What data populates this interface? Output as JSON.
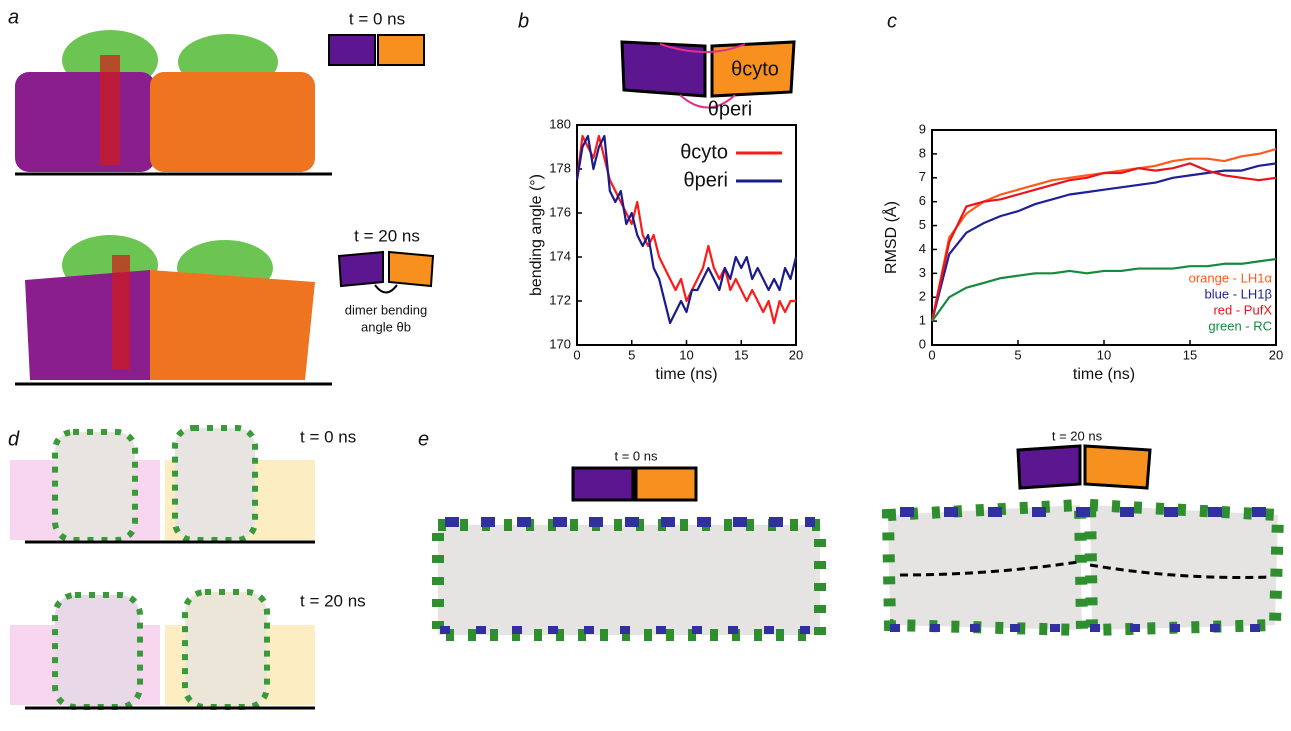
{
  "panels": {
    "a": {
      "label": "a",
      "t0": "t = 0 ns",
      "t20": "t = 20 ns",
      "note": [
        "dimer bending",
        "angle θb"
      ]
    },
    "b": {
      "label": "b",
      "schematic": [
        "θcyto",
        "θperi"
      ]
    },
    "c": {
      "label": "c"
    },
    "d": {
      "label": "d",
      "t0": "t = 0 ns",
      "t20": "t = 20 ns"
    },
    "e": {
      "label": "e",
      "t0": "t = 0 ns",
      "t20": "t = 20 ns"
    }
  },
  "chart_data": [
    {
      "type": "line",
      "xlabel": "time (ns)",
      "ylabel": "bending angle (°)",
      "xlim": [
        0,
        20
      ],
      "xticks": [
        0,
        5,
        10,
        15,
        20
      ],
      "ylim": [
        170,
        180
      ],
      "yticks": [
        170,
        172,
        174,
        176,
        178,
        180
      ],
      "legend": "upper right",
      "x": [
        0,
        0.5,
        1,
        1.5,
        2,
        2.5,
        3,
        3.5,
        4,
        4.5,
        5,
        5.5,
        6,
        6.5,
        7,
        7.5,
        8,
        8.5,
        9,
        9.5,
        10,
        10.5,
        11,
        11.5,
        12,
        12.5,
        13,
        13.5,
        14,
        14.5,
        15,
        15.5,
        16,
        16.5,
        17,
        17.5,
        18,
        18.5,
        19,
        19.5,
        20
      ],
      "series": [
        {
          "name": "θcyto",
          "color": "#ff1a1a",
          "values": [
            177.5,
            179.5,
            179,
            178.5,
            179.5,
            178.5,
            177.5,
            177,
            176.5,
            176,
            175.5,
            176.5,
            175,
            174.5,
            175,
            174,
            173.5,
            173,
            172.5,
            173,
            172,
            172.5,
            173,
            173.5,
            174.5,
            173.5,
            173,
            173.5,
            172.5,
            173,
            172.5,
            172,
            172.5,
            172,
            171.5,
            172,
            171,
            172,
            171.5,
            172,
            172
          ]
        },
        {
          "name": "θperi",
          "color": "#1a1a8c",
          "values": [
            177.5,
            179,
            179.5,
            178,
            179,
            179.5,
            177,
            176.5,
            177,
            175.5,
            176,
            175,
            174.5,
            175,
            173.5,
            173,
            172,
            171,
            171.5,
            172,
            171.5,
            172.5,
            172.5,
            173,
            173.5,
            173,
            172.5,
            173.5,
            173,
            174,
            173.5,
            174,
            173,
            173.5,
            173,
            172.5,
            173,
            172.5,
            173.5,
            173,
            174
          ]
        }
      ]
    },
    {
      "type": "line",
      "xlabel": "time (ns)",
      "ylabel": "RMSD (Å)",
      "xlim": [
        0,
        20
      ],
      "xticks": [
        0,
        5,
        10,
        15,
        20
      ],
      "ylim": [
        0,
        9
      ],
      "yticks": [
        0,
        1,
        2,
        3,
        4,
        5,
        6,
        7,
        8,
        9
      ],
      "legend": "lower right",
      "x": [
        0,
        1,
        2,
        3,
        4,
        5,
        6,
        7,
        8,
        9,
        10,
        11,
        12,
        13,
        14,
        15,
        16,
        17,
        18,
        19,
        20
      ],
      "series": [
        {
          "name": "orange - LH1α",
          "color": "#ff5a1a",
          "values": [
            1,
            4.5,
            5.5,
            6,
            6.3,
            6.5,
            6.7,
            6.9,
            7,
            7.1,
            7.2,
            7.3,
            7.4,
            7.5,
            7.7,
            7.8,
            7.8,
            7.7,
            7.9,
            8,
            8.2
          ]
        },
        {
          "name": "blue - LH1β",
          "color": "#1f1f99",
          "values": [
            1,
            3.8,
            4.7,
            5.1,
            5.4,
            5.6,
            5.9,
            6.1,
            6.3,
            6.4,
            6.5,
            6.6,
            6.7,
            6.8,
            7,
            7.1,
            7.2,
            7.3,
            7.3,
            7.5,
            7.6
          ]
        },
        {
          "name": "red - PufX",
          "color": "#e8141c",
          "values": [
            1,
            4.3,
            5.8,
            6,
            6.1,
            6.3,
            6.5,
            6.7,
            6.9,
            7,
            7.2,
            7.2,
            7.4,
            7.3,
            7.4,
            7.6,
            7.3,
            7.1,
            7,
            6.9,
            7
          ]
        },
        {
          "name": "green - RC",
          "color": "#138a3c",
          "values": [
            1,
            2,
            2.4,
            2.6,
            2.8,
            2.9,
            3,
            3,
            3.1,
            3,
            3.1,
            3.1,
            3.2,
            3.2,
            3.2,
            3.3,
            3.3,
            3.4,
            3.4,
            3.5,
            3.6
          ]
        }
      ]
    }
  ]
}
